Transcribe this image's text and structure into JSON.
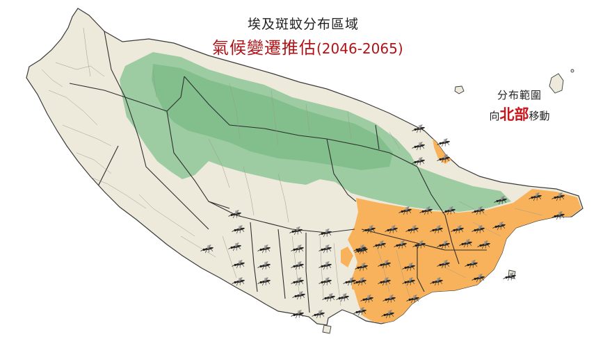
{
  "title": {
    "line1": "埃及斑蚊分布區域",
    "line2_main": "氣候變遷推估",
    "line2_years": "(2046-2065)"
  },
  "annotation": {
    "line1": "分布範圍",
    "line2_prefix": "向",
    "line2_accent": "北部",
    "line2_suffix": "移動"
  },
  "colors": {
    "land": "#eeeadb",
    "mountain": "#8ec798",
    "distribution": "#f9b25c",
    "boundary": "#444444",
    "title_red": "#b11216",
    "accent_red": "#c8141b"
  },
  "legend_icon": "mosquito-icon"
}
